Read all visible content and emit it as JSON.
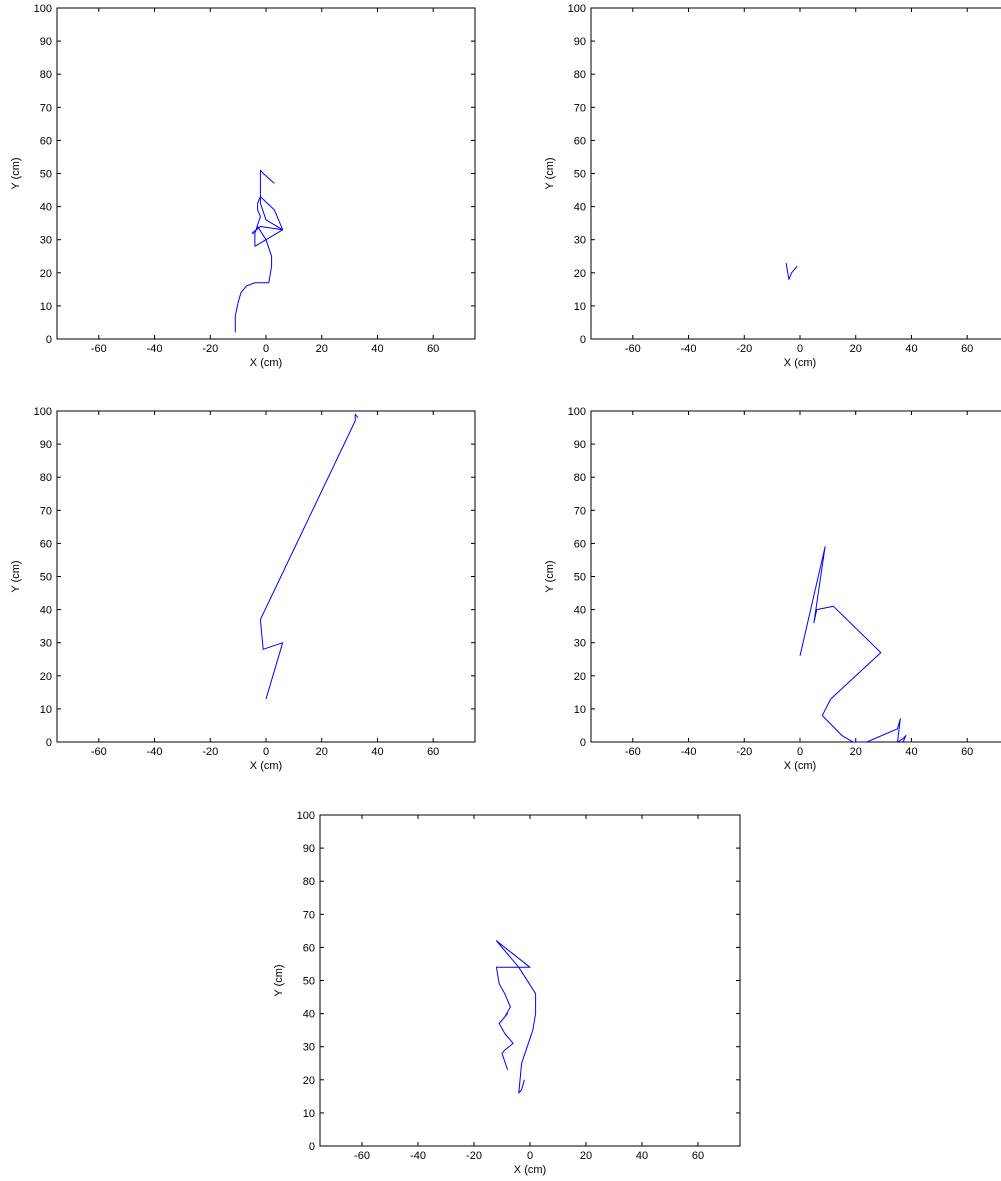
{
  "chart_data": [
    {
      "type": "line",
      "xlabel": "X (cm)",
      "ylabel": "Y (cm)",
      "xlim": [
        -75,
        75
      ],
      "ylim": [
        0,
        100
      ],
      "xticks": [
        -60,
        -40,
        -20,
        0,
        20,
        40,
        60
      ],
      "yticks": [
        0,
        10,
        20,
        30,
        40,
        50,
        60,
        70,
        80,
        90,
        100
      ],
      "grid": false,
      "series": [
        {
          "color": "#0000ff",
          "x": [
            -11,
            -11,
            -10,
            -9,
            -7,
            -4,
            1,
            2,
            2,
            0,
            -3,
            -4,
            -5,
            -2,
            6,
            -4,
            -4,
            -2,
            -3,
            -3,
            -2,
            3,
            6,
            0,
            -2,
            -2,
            -1,
            3
          ],
          "y": [
            2,
            7,
            11,
            14,
            16,
            17,
            17,
            22,
            25,
            30,
            34,
            32,
            32,
            34,
            33,
            28,
            32,
            37,
            39,
            41,
            43,
            39,
            33,
            36,
            41,
            51,
            50,
            47
          ]
        }
      ]
    },
    {
      "type": "line",
      "xlabel": "X (cm)",
      "ylabel": "Y (cm)",
      "xlim": [
        -75,
        75
      ],
      "ylim": [
        0,
        100
      ],
      "xticks": [
        -60,
        -40,
        -20,
        0,
        20,
        40,
        60
      ],
      "yticks": [
        0,
        10,
        20,
        30,
        40,
        50,
        60,
        70,
        80,
        90,
        100
      ],
      "grid": false,
      "series": [
        {
          "color": "#0000ff",
          "x": [
            -5,
            -4,
            -3,
            -1
          ],
          "y": [
            23,
            18,
            20,
            22
          ]
        }
      ]
    },
    {
      "type": "line",
      "xlabel": "X (cm)",
      "ylabel": "Y (cm)",
      "xlim": [
        -75,
        75
      ],
      "ylim": [
        0,
        100
      ],
      "xticks": [
        -60,
        -40,
        -20,
        0,
        20,
        40,
        60
      ],
      "yticks": [
        0,
        10,
        20,
        30,
        40,
        50,
        60,
        70,
        80,
        90,
        100
      ],
      "grid": false,
      "series": [
        {
          "color": "#0000ff",
          "x": [
            0,
            6,
            -1,
            -2,
            32,
            32,
            33
          ],
          "y": [
            13,
            30,
            28,
            37,
            97,
            99,
            98
          ]
        }
      ]
    },
    {
      "type": "line",
      "xlabel": "X (cm)",
      "ylabel": "Y (cm)",
      "xlim": [
        -75,
        75
      ],
      "ylim": [
        0,
        100
      ],
      "xticks": [
        -60,
        -40,
        -20,
        0,
        20,
        40,
        60
      ],
      "yticks": [
        0,
        10,
        20,
        30,
        40,
        50,
        60,
        70,
        80,
        90,
        100
      ],
      "grid": false,
      "series": [
        {
          "color": "#0000ff",
          "x": [
            0,
            9,
            5,
            6,
            12,
            29,
            11,
            8,
            15,
            19,
            24,
            35,
            36,
            35,
            37,
            38,
            37
          ],
          "y": [
            26,
            59,
            36,
            40,
            41,
            27,
            13,
            8,
            2,
            0,
            0,
            4,
            7,
            0,
            1,
            2,
            0
          ]
        }
      ]
    },
    {
      "type": "line",
      "xlabel": "X (cm)",
      "ylabel": "Y (cm)",
      "xlim": [
        -75,
        75
      ],
      "ylim": [
        0,
        100
      ],
      "xticks": [
        -60,
        -40,
        -20,
        0,
        20,
        40,
        60
      ],
      "yticks": [
        0,
        10,
        20,
        30,
        40,
        50,
        60,
        70,
        80,
        90,
        100
      ],
      "grid": false,
      "series": [
        {
          "color": "#0000ff",
          "x": [
            -2,
            -3,
            -4,
            -3,
            1,
            2,
            2,
            -4,
            -12,
            0,
            -12,
            -11,
            -9,
            -8,
            -7,
            -9,
            -8,
            -11,
            -9,
            -6,
            -9,
            -10,
            -8
          ],
          "y": [
            20,
            17,
            16,
            25,
            35,
            40,
            46,
            54,
            62,
            54,
            54,
            49,
            46,
            44,
            42,
            39,
            40,
            37,
            34,
            31,
            29,
            28,
            23
          ]
        }
      ]
    }
  ]
}
